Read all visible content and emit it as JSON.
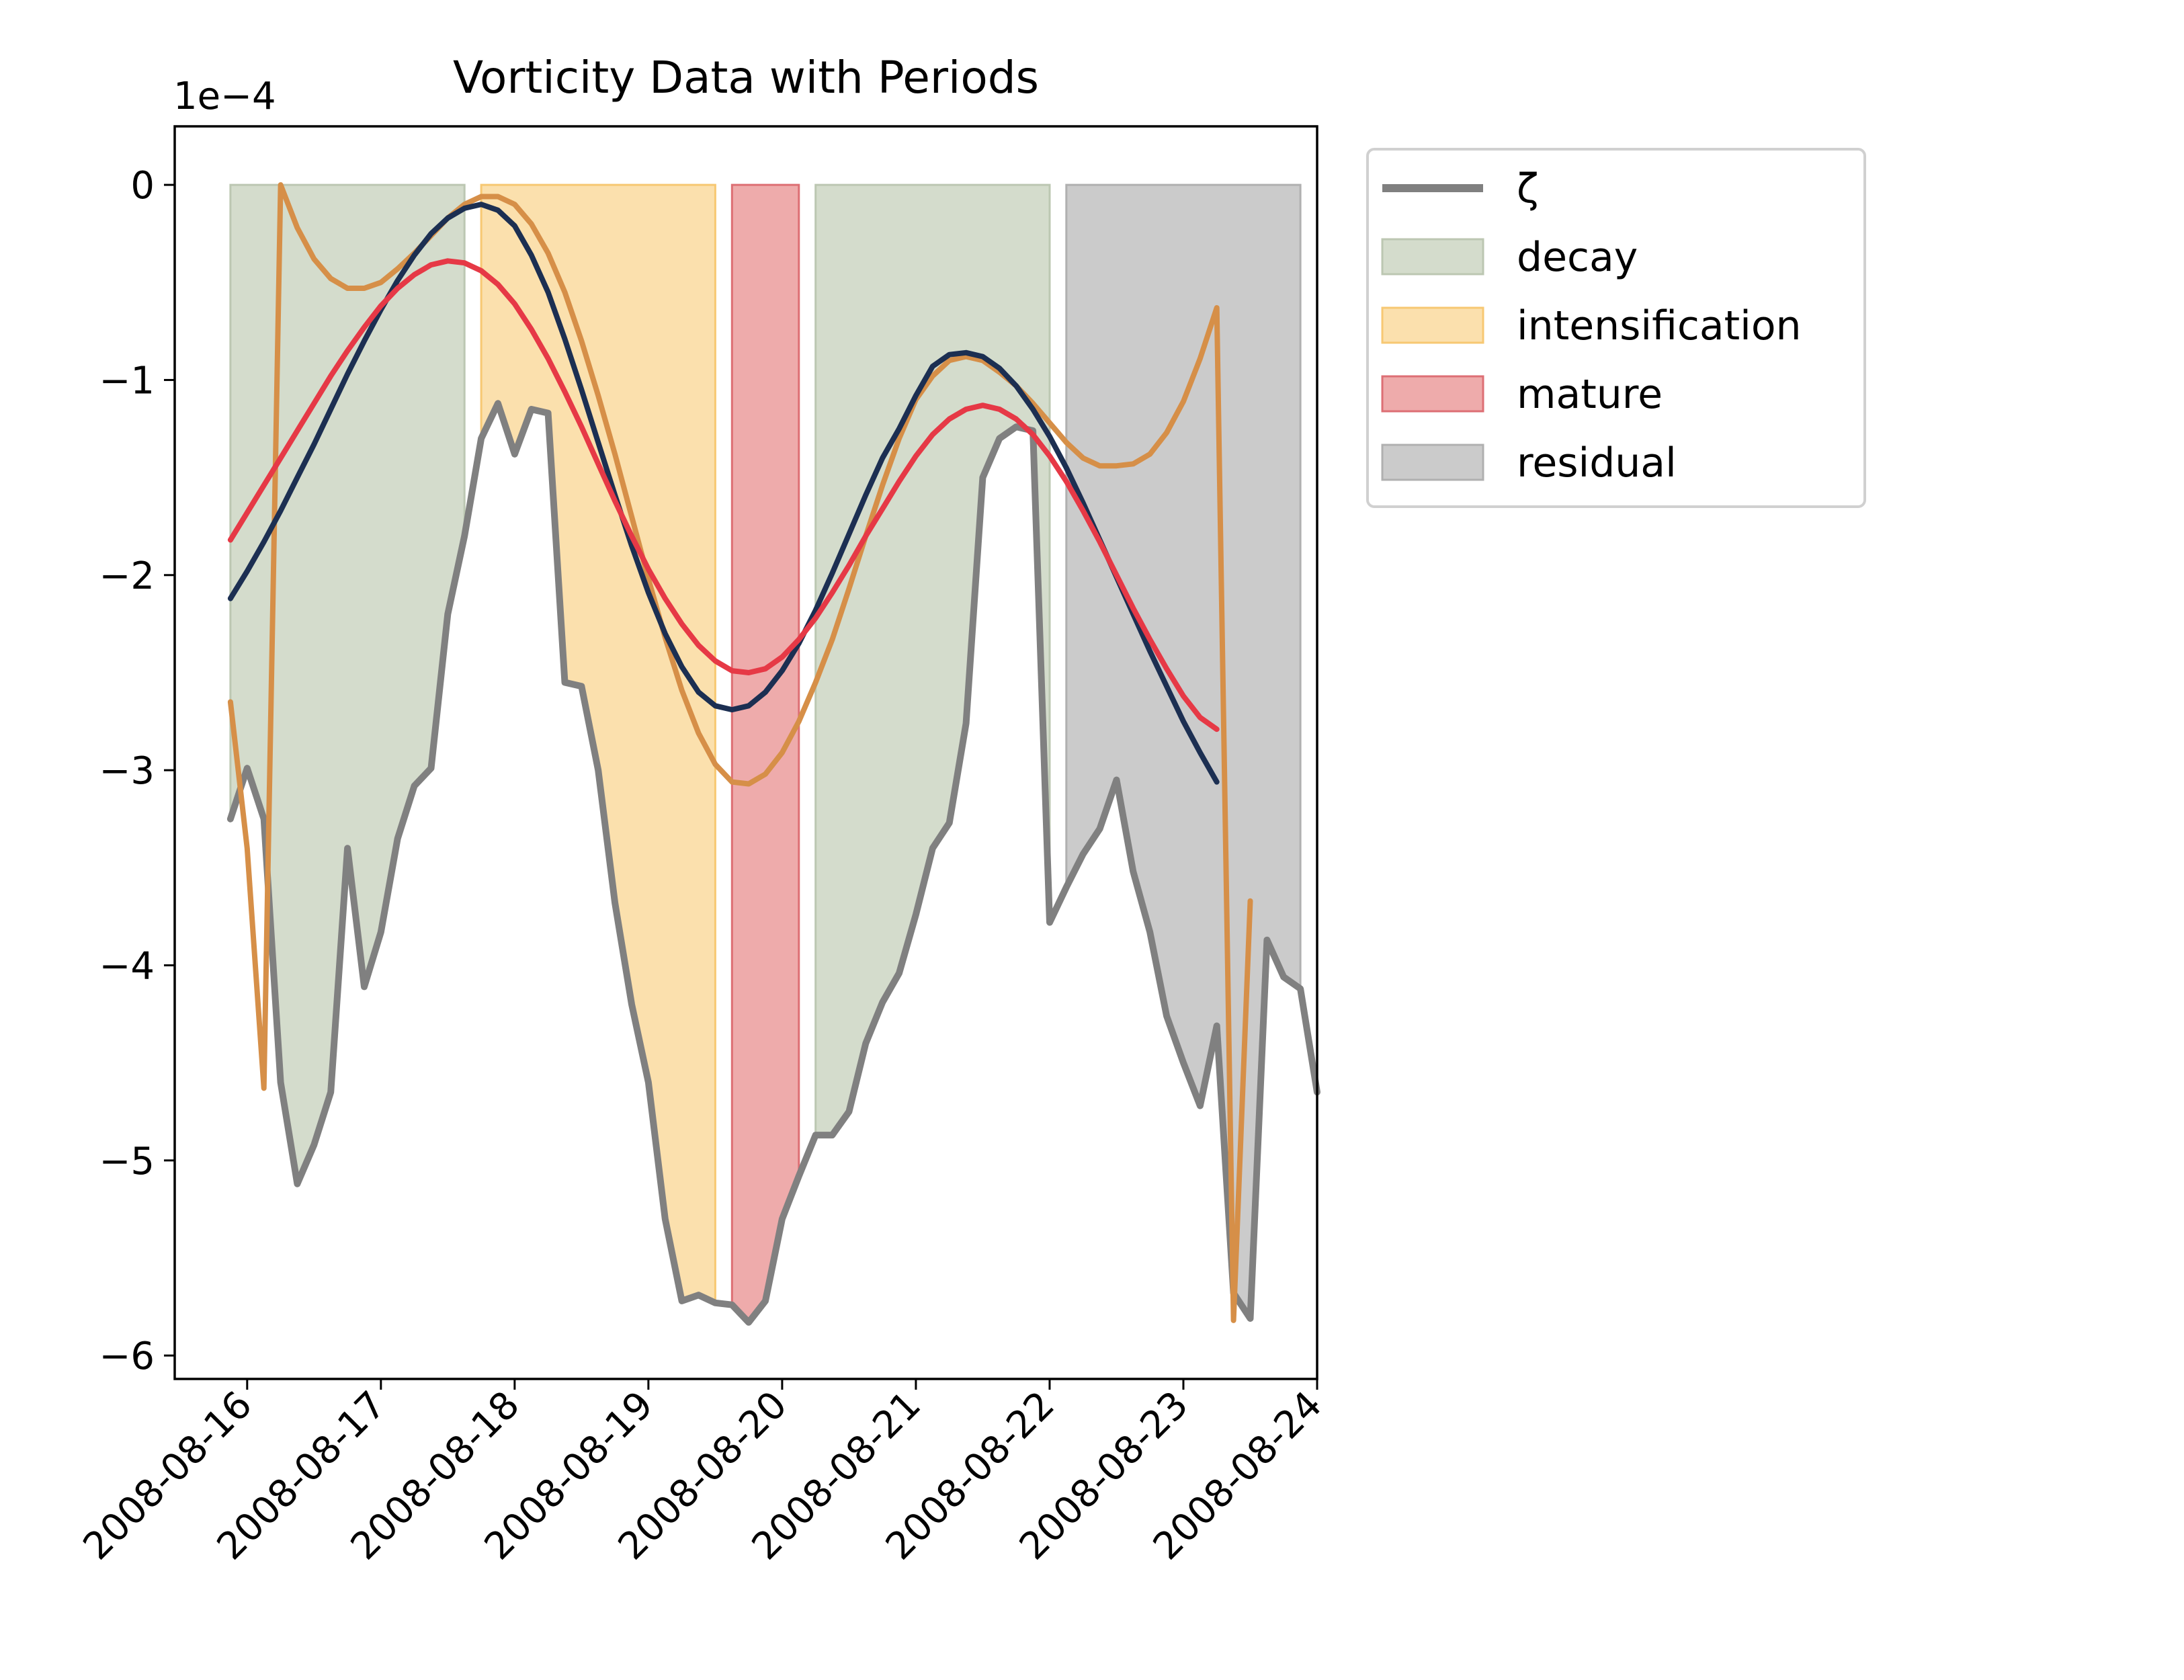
{
  "chart_data": {
    "type": "line",
    "title": "Vorticity Data with Periods",
    "xlabel": "",
    "ylabel": "",
    "y_offset_label": "1e−4",
    "y_scale_factor": 0.0001,
    "xlim": [
      "2008-08-15 11:00",
      "2008-08-24 00:00"
    ],
    "ylim": [
      -6.12,
      0.3
    ],
    "x_ticks": [
      "2008-08-16",
      "2008-08-17",
      "2008-08-18",
      "2008-08-19",
      "2008-08-20",
      "2008-08-21",
      "2008-08-22",
      "2008-08-23",
      "2008-08-24"
    ],
    "x_tick_labels": [
      "2008-08-16",
      "2008-08-17",
      "2008-08-18",
      "2008-08-19",
      "2008-08-20",
      "2008-08-21",
      "2008-08-22",
      "2008-08-23",
      "2008-08-24"
    ],
    "y_ticks": [
      0,
      -1,
      -2,
      -3,
      -4,
      -5,
      -6
    ],
    "y_tick_labels": [
      "0",
      "−1",
      "−2",
      "−3",
      "−4",
      "−5",
      "−6"
    ],
    "grid": false,
    "legend_position": "outside right, top",
    "periods": [
      {
        "label": "decay",
        "start": "2008-08-15 21:00",
        "end": "2008-08-17 15:00",
        "color": "#d4dccc",
        "edge": "#bcc7b2"
      },
      {
        "label": "intensification",
        "start": "2008-08-17 18:00",
        "end": "2008-08-19 12:00",
        "color": "#fbe0ad",
        "edge": "#f7c873"
      },
      {
        "label": "mature",
        "start": "2008-08-19 15:00",
        "end": "2008-08-20 03:00",
        "color": "#eeabab",
        "edge": "#dd6f74"
      },
      {
        "label": "decay",
        "start": "2008-08-20 06:00",
        "end": "2008-08-22 00:00",
        "color": "#d4dccc",
        "edge": "#bcc7b2"
      },
      {
        "label": "residual",
        "start": "2008-08-22 03:00",
        "end": "2008-08-23 21:00",
        "color": "#cbcbcb",
        "edge": "#b0b0b0"
      }
    ],
    "legend": [
      {
        "label": "ζ",
        "kind": "line",
        "color": "#808080"
      },
      {
        "label": "decay",
        "kind": "patch",
        "color": "#d4dccc",
        "edge": "#bcc7b2"
      },
      {
        "label": "intensification",
        "kind": "patch",
        "color": "#fbe0ad",
        "edge": "#f7c873"
      },
      {
        "label": "mature",
        "kind": "patch",
        "color": "#eeabab",
        "edge": "#dd6f74"
      },
      {
        "label": "residual",
        "kind": "patch",
        "color": "#cbcbcb",
        "edge": "#b0b0b0"
      }
    ],
    "x_start": "2008-08-15 21:00",
    "x_step_hours": 3,
    "series": [
      {
        "name": "ζ",
        "color": "#808080",
        "values": [
          -3.25,
          -2.99,
          -3.25,
          -4.6,
          -5.12,
          -4.92,
          -4.65,
          -3.4,
          -4.11,
          -3.83,
          -3.35,
          -3.08,
          -2.99,
          -2.2,
          -1.8,
          -1.3,
          -1.12,
          -1.38,
          -1.15,
          -1.17,
          -2.55,
          -2.57,
          -3.0,
          -3.68,
          -4.2,
          -4.6,
          -5.3,
          -5.72,
          -5.69,
          -5.73,
          -5.74,
          -5.83,
          -5.72,
          -5.3,
          -5.08,
          -4.87,
          -4.87,
          -4.75,
          -4.4,
          -4.19,
          -4.04,
          -3.74,
          -3.4,
          -3.27,
          -2.76,
          -1.5,
          -1.3,
          -1.24,
          -1.26,
          -3.78,
          -3.6,
          -3.43,
          -3.3,
          -3.05,
          -3.52,
          -3.83,
          -4.26,
          -4.5,
          -4.72,
          -4.31,
          -5.68,
          -5.81,
          -3.87,
          -4.06,
          -4.12,
          -4.65
        ]
      },
      {
        "name": "",
        "color": "#d68f48",
        "values": [
          -2.65,
          -3.4,
          -4.63,
          0.0,
          -0.22,
          -0.38,
          -0.48,
          -0.53,
          -0.53,
          -0.5,
          -0.43,
          -0.35,
          -0.26,
          -0.17,
          -0.1,
          -0.06,
          -0.06,
          -0.1,
          -0.2,
          -0.35,
          -0.55,
          -0.8,
          -1.08,
          -1.38,
          -1.7,
          -2.02,
          -2.32,
          -2.59,
          -2.81,
          -2.97,
          -3.06,
          -3.07,
          -3.02,
          -2.91,
          -2.75,
          -2.55,
          -2.33,
          -2.07,
          -1.8,
          -1.54,
          -1.3,
          -1.1,
          -0.98,
          -0.9,
          -0.88,
          -0.9,
          -0.96,
          -1.03,
          -1.12,
          -1.22,
          -1.32,
          -1.4,
          -1.44,
          -1.44,
          -1.43,
          -1.38,
          -1.27,
          -1.11,
          -0.89,
          -0.63,
          -5.82,
          -3.67
        ]
      },
      {
        "name": "",
        "color": "#1c2f52",
        "values": [
          -2.12,
          -1.98,
          -1.83,
          -1.67,
          -1.5,
          -1.33,
          -1.15,
          -0.97,
          -0.8,
          -0.64,
          -0.49,
          -0.36,
          -0.25,
          -0.17,
          -0.12,
          -0.1,
          -0.13,
          -0.21,
          -0.36,
          -0.55,
          -0.79,
          -1.05,
          -1.32,
          -1.59,
          -1.85,
          -2.09,
          -2.3,
          -2.47,
          -2.6,
          -2.67,
          -2.69,
          -2.67,
          -2.6,
          -2.49,
          -2.35,
          -2.18,
          -1.99,
          -1.79,
          -1.59,
          -1.4,
          -1.25,
          -1.08,
          -0.93,
          -0.87,
          -0.86,
          -0.88,
          -0.94,
          -1.03,
          -1.15,
          -1.29,
          -1.45,
          -1.63,
          -1.82,
          -2.01,
          -2.2,
          -2.39,
          -2.57,
          -2.75,
          -2.91,
          -3.06
        ]
      },
      {
        "name": "",
        "color": "#e63946",
        "values": [
          -1.82,
          -1.68,
          -1.54,
          -1.4,
          -1.26,
          -1.12,
          -0.98,
          -0.85,
          -0.73,
          -0.62,
          -0.53,
          -0.46,
          -0.41,
          -0.39,
          -0.4,
          -0.44,
          -0.51,
          -0.61,
          -0.74,
          -0.89,
          -1.06,
          -1.24,
          -1.43,
          -1.62,
          -1.8,
          -1.97,
          -2.12,
          -2.25,
          -2.36,
          -2.44,
          -2.49,
          -2.5,
          -2.48,
          -2.42,
          -2.33,
          -2.22,
          -2.09,
          -1.95,
          -1.8,
          -1.66,
          -1.52,
          -1.39,
          -1.28,
          -1.2,
          -1.15,
          -1.13,
          -1.15,
          -1.2,
          -1.28,
          -1.39,
          -1.52,
          -1.67,
          -1.83,
          -2.0,
          -2.17,
          -2.33,
          -2.48,
          -2.62,
          -2.73,
          -2.79
        ]
      }
    ]
  }
}
